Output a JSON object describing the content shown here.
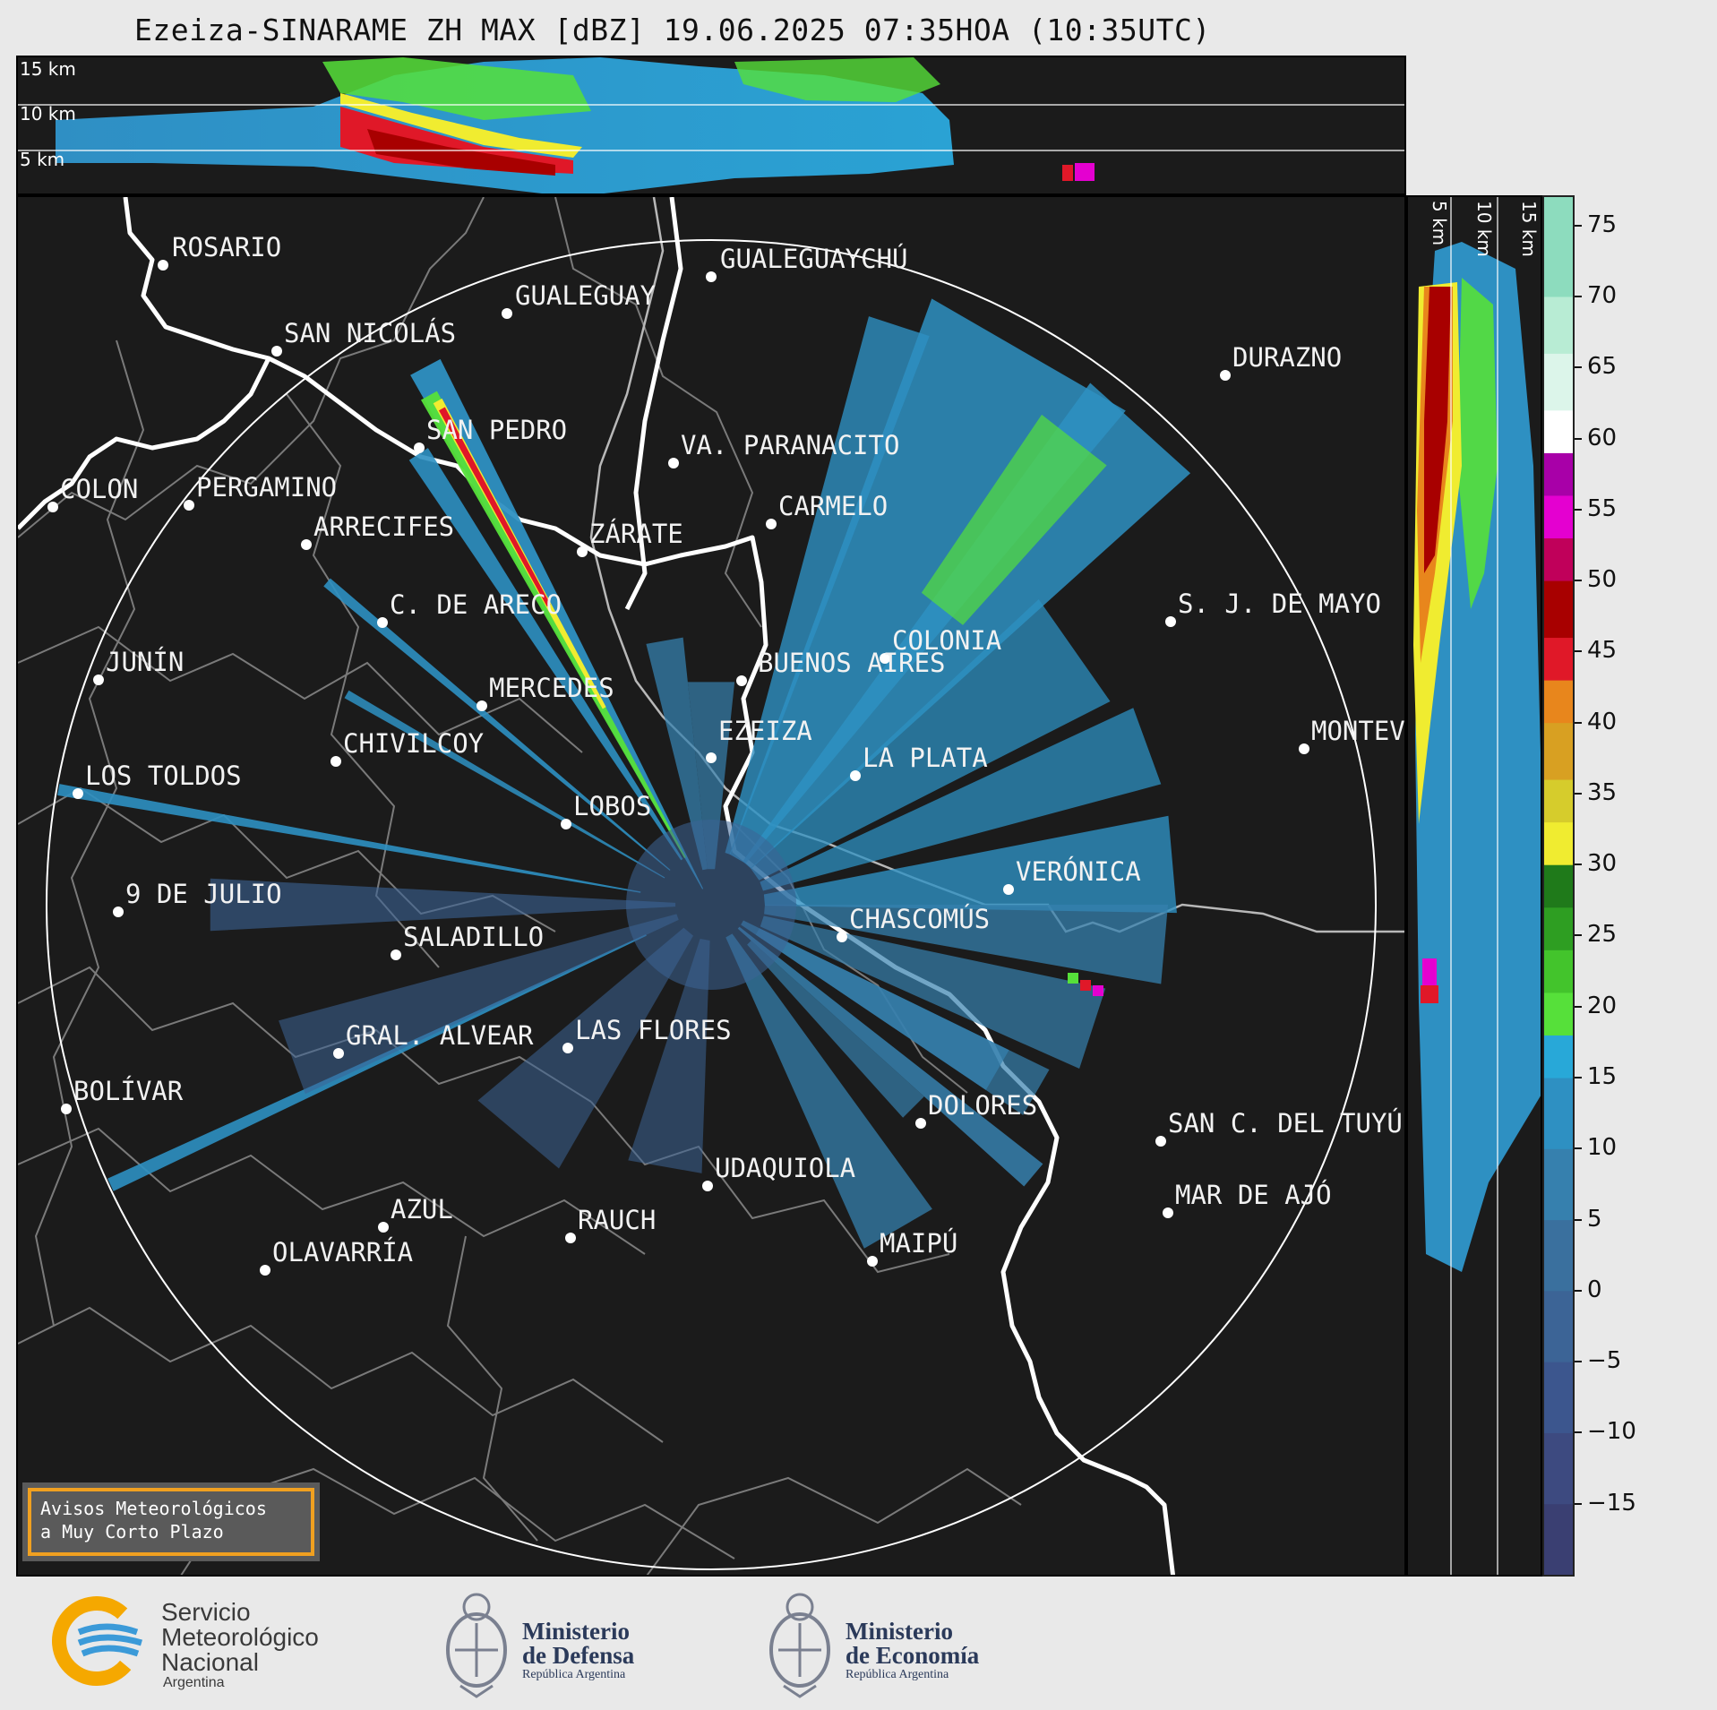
{
  "title": "Ezeiza-SINARAME ZH MAX [dBZ] 19.06.2025 07:35HOA (10:35UTC)",
  "top_panel": {
    "altitude_labels": [
      "15 km",
      "10 km",
      "5 km"
    ]
  },
  "side_panel": {
    "altitude_labels": [
      "5 km",
      "10 km",
      "15 km"
    ]
  },
  "colorbar": {
    "ticks": [
      "75",
      "70",
      "65",
      "60",
      "55",
      "50",
      "45",
      "40",
      "35",
      "30",
      "25",
      "20",
      "15",
      "10",
      "5",
      "0",
      "−5",
      "−10",
      "−15"
    ],
    "tick_values": [
      75,
      70,
      65,
      60,
      55,
      50,
      45,
      40,
      35,
      30,
      25,
      20,
      15,
      10,
      5,
      0,
      -5,
      -10,
      -15
    ],
    "range": [
      -20,
      77
    ],
    "stops": [
      {
        "from": -20,
        "to": -15,
        "color": "#3a3f72"
      },
      {
        "from": -15,
        "to": -10,
        "color": "#3d4a80"
      },
      {
        "from": -10,
        "to": -5,
        "color": "#3c568e"
      },
      {
        "from": -5,
        "to": 0,
        "color": "#3c6496"
      },
      {
        "from": 0,
        "to": 5,
        "color": "#3a709e"
      },
      {
        "from": 5,
        "to": 10,
        "color": "#3680ae"
      },
      {
        "from": 10,
        "to": 15,
        "color": "#2e90c2"
      },
      {
        "from": 15,
        "to": 18,
        "color": "#28a8d8"
      },
      {
        "from": 18,
        "to": 21,
        "color": "#56e03a"
      },
      {
        "from": 21,
        "to": 24,
        "color": "#43c42c"
      },
      {
        "from": 24,
        "to": 27,
        "color": "#2e9e22"
      },
      {
        "from": 27,
        "to": 30,
        "color": "#1f7a1a"
      },
      {
        "from": 30,
        "to": 33,
        "color": "#f0ec30"
      },
      {
        "from": 33,
        "to": 36,
        "color": "#d6cc2c"
      },
      {
        "from": 36,
        "to": 40,
        "color": "#d8a022"
      },
      {
        "from": 40,
        "to": 43,
        "color": "#e8861c"
      },
      {
        "from": 43,
        "to": 46,
        "color": "#e01828"
      },
      {
        "from": 46,
        "to": 50,
        "color": "#a80000"
      },
      {
        "from": 50,
        "to": 53,
        "color": "#c0005a"
      },
      {
        "from": 53,
        "to": 56,
        "color": "#e400d0"
      },
      {
        "from": 56,
        "to": 59,
        "color": "#a800a8"
      },
      {
        "from": 59,
        "to": 62,
        "color": "#ffffff"
      },
      {
        "from": 62,
        "to": 66,
        "color": "#dcf5ea"
      },
      {
        "from": 66,
        "to": 70,
        "color": "#b8ecd4"
      },
      {
        "from": 70,
        "to": 77,
        "color": "#8ddcbe"
      }
    ]
  },
  "map": {
    "cities": [
      {
        "name": "ROSARIO"
      },
      {
        "name": "GUALEGUAYCHÚ"
      },
      {
        "name": "GUALEGUAY"
      },
      {
        "name": "SAN NICOLÁS"
      },
      {
        "name": "DURAZNO"
      },
      {
        "name": "SAN PEDRO"
      },
      {
        "name": "VA. PARANACITO"
      },
      {
        "name": "COLON"
      },
      {
        "name": "PERGAMINO"
      },
      {
        "name": "CARMELO"
      },
      {
        "name": "ARRECIFES"
      },
      {
        "name": "ZÁRATE"
      },
      {
        "name": "S. J. DE MAYO"
      },
      {
        "name": "C. DE ARECO"
      },
      {
        "name": "COLONIA"
      },
      {
        "name": "JUNÍN"
      },
      {
        "name": "BUENOS AIRES"
      },
      {
        "name": "MERCEDES"
      },
      {
        "name": "MONTEVIDEO"
      },
      {
        "name": "EZEIZA"
      },
      {
        "name": "CHIVILCOY"
      },
      {
        "name": "LA PLATA"
      },
      {
        "name": "LOS TOLDOS"
      },
      {
        "name": "LOBOS"
      },
      {
        "name": "VERÓNICA"
      },
      {
        "name": "9 DE JULIO"
      },
      {
        "name": "CHASCOMÚS"
      },
      {
        "name": "SALADILLO"
      },
      {
        "name": "GRAL. ALVEAR"
      },
      {
        "name": "LAS FLORES"
      },
      {
        "name": "BOLÍVAR"
      },
      {
        "name": "DOLORES"
      },
      {
        "name": "SAN C. DEL TUYÚ"
      },
      {
        "name": "UDAQUIOLA"
      },
      {
        "name": "MAR DE AJÓ"
      },
      {
        "name": "AZUL"
      },
      {
        "name": "RAUCH"
      },
      {
        "name": "MAIPÚ"
      },
      {
        "name": "OLAVARRÍA"
      }
    ],
    "avisos_line1": "Avisos Meteorológicos",
    "avisos_line2": "a Muy Corto Plazo"
  },
  "footer": {
    "smn": {
      "line1": "Servicio",
      "line2": "Meteorológico",
      "line3": "Nacional",
      "line4": "Argentina"
    },
    "defensa": {
      "line1": "Ministerio",
      "line2": "de Defensa",
      "line3": "República Argentina"
    },
    "economia": {
      "line1": "Ministerio",
      "line2": "de Economía",
      "line3": "República Argentina"
    }
  }
}
